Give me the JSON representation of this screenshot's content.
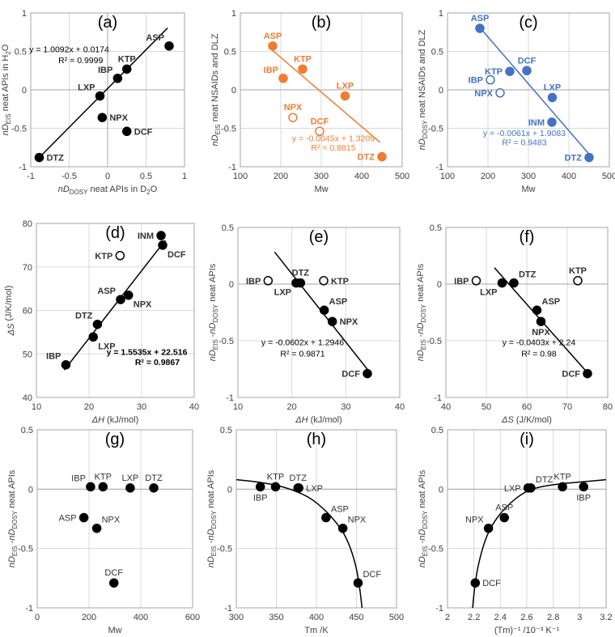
{
  "colors": {
    "black": "#000000",
    "orange": "#ED7D31",
    "blue": "#4472C4",
    "grid": "#d9d9d9",
    "axis": "#a6a6a6",
    "text": "#404040"
  },
  "chart_data": [
    {
      "type": "scatter",
      "panel_label": "(a)",
      "xlim": [
        -1,
        1
      ],
      "ylim": [
        -1,
        1
      ],
      "xticks": [
        "-1",
        "-0.5",
        "0",
        "0.5",
        "1"
      ],
      "yticks": [
        "-1",
        "-0.5",
        "0",
        "0.5",
        "1"
      ],
      "xlabel_italic": "nD",
      "xlabel_sub": "DOSY",
      "xlabel_rest": " neat APIs in D",
      "xlabel_sub2": "2",
      "xlabel_end": "O",
      "ylabel_italic": "nD",
      "ylabel_sub": "EIS",
      "ylabel_rest": " neat APIs in H",
      "ylabel_sub2": "2",
      "ylabel_end": "O",
      "color": "#000000",
      "points": [
        {
          "label": "ASP",
          "x": 0.8,
          "y": 0.57,
          "filled": true,
          "pos": "tl"
        },
        {
          "label": "KTP",
          "x": 0.25,
          "y": 0.27,
          "filled": true,
          "pos": "t"
        },
        {
          "label": "IBP",
          "x": 0.13,
          "y": 0.15,
          "filled": true,
          "pos": "tl"
        },
        {
          "label": "LXP",
          "x": -0.1,
          "y": -0.08,
          "filled": true,
          "pos": "tl"
        },
        {
          "label": "NPX",
          "x": -0.07,
          "y": -0.36,
          "filled": true,
          "pos": "r"
        },
        {
          "label": "DCF",
          "x": 0.25,
          "y": -0.54,
          "filled": true,
          "pos": "r"
        },
        {
          "label": "DTZ",
          "x": -0.89,
          "y": -0.88,
          "filled": true,
          "pos": "r"
        }
      ],
      "fit": {
        "kind": "linear",
        "slope": 1.0092,
        "intercept": 0.0174,
        "x_range": [
          -0.9,
          0.78
        ],
        "equation": "y = 1.0092x + 0.0174",
        "r2": "R² = 0.9999",
        "eq_at": [
          -0.5,
          0.49
        ],
        "r2_at": [
          -0.35,
          0.35
        ],
        "eq_weight": "normal"
      }
    },
    {
      "type": "scatter",
      "panel_label": "(b)",
      "xlim": [
        100,
        500
      ],
      "ylim": [
        -1,
        1
      ],
      "xticks": [
        "100",
        "200",
        "300",
        "400",
        "500"
      ],
      "yticks": [
        "-1",
        "-0.5",
        "0",
        "0.5",
        "1"
      ],
      "xlabel": "Mw",
      "ylabel_italic": "nD",
      "ylabel_sub": "EIS",
      "ylabel_rest": " neat NSAIDs and DLZ",
      "color": "#ED7D31",
      "points": [
        {
          "label": "ASP",
          "x": 180,
          "y": 0.57,
          "filled": true,
          "pos": "t"
        },
        {
          "label": "KTP",
          "x": 254,
          "y": 0.27,
          "filled": true,
          "pos": "t"
        },
        {
          "label": "IBP",
          "x": 206,
          "y": 0.15,
          "filled": true,
          "pos": "tl"
        },
        {
          "label": "LXP",
          "x": 359,
          "y": -0.08,
          "filled": true,
          "pos": "t"
        },
        {
          "label": "NPX",
          "x": 230,
          "y": -0.36,
          "filled": false,
          "pos": "t"
        },
        {
          "label": "DCF",
          "x": 296,
          "y": -0.54,
          "filled": false,
          "pos": "t"
        },
        {
          "label": "DTZ",
          "x": 450,
          "y": -0.87,
          "filled": true,
          "pos": "l"
        }
      ],
      "fit": {
        "kind": "linear",
        "slope": -0.0045,
        "intercept": 1.3209,
        "x_range": [
          178,
          445
        ],
        "equation": "y = -0.0045x + 1.3209",
        "r2": "R² = 0.8815",
        "eq_at": [
          330,
          -0.67
        ],
        "r2_at": [
          330,
          -0.79
        ],
        "eq_weight": "normal"
      }
    },
    {
      "type": "scatter",
      "panel_label": "(c)",
      "xlim": [
        100,
        500
      ],
      "ylim": [
        -1,
        1
      ],
      "xticks": [
        "100",
        "200",
        "300",
        "400",
        "500"
      ],
      "yticks": [
        "-1",
        "-0.5",
        "0",
        "0.5",
        "1"
      ],
      "xlabel": "Mw",
      "ylabel_italic": "nD",
      "ylabel_sub": "DOSY",
      "ylabel_rest": " neat NSAIDs and DLZ",
      "color": "#4472C4",
      "points": [
        {
          "label": "ASP",
          "x": 180,
          "y": 0.8,
          "filled": true,
          "pos": "t"
        },
        {
          "label": "DCF",
          "x": 296,
          "y": 0.25,
          "filled": true,
          "pos": "t"
        },
        {
          "label": "KTP",
          "x": 254,
          "y": 0.24,
          "filled": true,
          "pos": "l"
        },
        {
          "label": "IBP",
          "x": 206,
          "y": 0.13,
          "filled": false,
          "pos": "l"
        },
        {
          "label": "NPX",
          "x": 230,
          "y": -0.04,
          "filled": false,
          "pos": "l"
        },
        {
          "label": "LXP",
          "x": 359,
          "y": -0.1,
          "filled": true,
          "pos": "t"
        },
        {
          "label": "INM",
          "x": 358,
          "y": -0.42,
          "filled": true,
          "pos": "l"
        },
        {
          "label": "DTZ",
          "x": 450,
          "y": -0.88,
          "filled": true,
          "pos": "l"
        }
      ],
      "fit": {
        "kind": "linear",
        "slope": -0.0061,
        "intercept": 1.9083,
        "x_range": [
          180,
          452
        ],
        "equation": "y = -0.0061x + 1.9083",
        "r2": "R² = 0.9483",
        "eq_at": [
          290,
          -0.6
        ],
        "r2_at": [
          290,
          -0.72
        ],
        "eq_weight": "normal"
      }
    },
    {
      "type": "scatter",
      "panel_label": "(d)",
      "xlim": [
        10,
        40
      ],
      "ylim": [
        40,
        80
      ],
      "xticks": [
        "10",
        "20",
        "30",
        "40"
      ],
      "yticks": [
        "40",
        "50",
        "60",
        "70",
        "80"
      ],
      "xlabel_italic": "ΔH",
      "xlabel_rest": " (kJ/mol)",
      "ylabel_italic": "ΔS",
      "ylabel_rest": " (J/K/mol)",
      "color": "#000000",
      "points": [
        {
          "label": "INM",
          "x": 33.7,
          "y": 77.2,
          "filled": true,
          "pos": "l"
        },
        {
          "label": "DCF",
          "x": 34.0,
          "y": 75.0,
          "filled": true,
          "pos": "br"
        },
        {
          "label": "KTP",
          "x": 25.9,
          "y": 72.6,
          "filled": false,
          "pos": "l"
        },
        {
          "label": "ASP",
          "x": 26.0,
          "y": 62.5,
          "filled": true,
          "pos": "tl"
        },
        {
          "label": "NPX",
          "x": 27.5,
          "y": 63.5,
          "filled": true,
          "pos": "br"
        },
        {
          "label": "DTZ",
          "x": 21.6,
          "y": 56.8,
          "filled": true,
          "pos": "tl"
        },
        {
          "label": "LXP",
          "x": 20.8,
          "y": 53.9,
          "filled": true,
          "pos": "br"
        },
        {
          "label": "IBP",
          "x": 15.6,
          "y": 47.5,
          "filled": true,
          "pos": "tl"
        }
      ],
      "fit": {
        "kind": "linear",
        "slope": 1.5535,
        "intercept": 22.516,
        "x_range": [
          15.3,
          34.5
        ],
        "equation": "y = 1.5535x + 22.516",
        "r2": "R² = 0.9867",
        "eq_at": [
          31,
          49.8
        ],
        "r2_at": [
          33,
          47.4
        ],
        "eq_weight": "bold"
      }
    },
    {
      "type": "scatter",
      "panel_label": "(e)",
      "xlim": [
        10,
        40
      ],
      "ylim": [
        -1,
        0.5
      ],
      "xticks": [
        "10",
        "20",
        "30",
        "40"
      ],
      "yticks": [
        "-1",
        "-0.5",
        "0",
        "0.5"
      ],
      "xlabel_italic": "ΔH",
      "xlabel_rest": " (kJ/mol)",
      "ylabel_italic": "nD",
      "ylabel_sub": "EIS",
      "ylabel_rest2": " -",
      "ylabel_italic2": "nD",
      "ylabel_sub2": "DOSY",
      "ylabel_end": " neat APIs",
      "color": "#000000",
      "points": [
        {
          "label": "IBP",
          "x": 15.6,
          "y": 0.03,
          "filled": false,
          "pos": "l"
        },
        {
          "label": "LXP",
          "x": 20.8,
          "y": 0.01,
          "filled": true,
          "pos": "bl"
        },
        {
          "label": "DTZ",
          "x": 21.6,
          "y": 0.01,
          "filled": true,
          "pos": "t"
        },
        {
          "label": "KTP",
          "x": 25.9,
          "y": 0.03,
          "filled": false,
          "pos": "r"
        },
        {
          "label": "ASP",
          "x": 26.0,
          "y": -0.23,
          "filled": true,
          "pos": "tr"
        },
        {
          "label": "NPX",
          "x": 27.5,
          "y": -0.33,
          "filled": true,
          "pos": "r"
        },
        {
          "label": "DCF",
          "x": 34.0,
          "y": -0.79,
          "filled": true,
          "pos": "l"
        }
      ],
      "fit": {
        "kind": "linear",
        "slope": -0.0602,
        "intercept": 1.2946,
        "x_range": [
          16.8,
          34.6
        ],
        "equation": "y = -0.0602x + 1.2946",
        "r2": "R² = 0.9871",
        "eq_at": [
          22,
          -0.54
        ],
        "r2_at": [
          22,
          -0.64
        ],
        "eq_weight": "normal"
      }
    },
    {
      "type": "scatter",
      "panel_label": "(f)",
      "xlim": [
        40,
        80
      ],
      "ylim": [
        -1,
        0.5
      ],
      "xticks": [
        "40",
        "50",
        "60",
        "70",
        "80"
      ],
      "yticks": [
        "-1",
        "-0.5",
        "0",
        "0.5"
      ],
      "xlabel_italic": "ΔS",
      "xlabel_rest": " (J/K/mol)",
      "ylabel_italic": "nD",
      "ylabel_sub": "EIS",
      "ylabel_rest2": " -",
      "ylabel_italic2": "nD",
      "ylabel_sub2": "DOSY",
      "ylabel_end": " neat APIs",
      "color": "#000000",
      "points": [
        {
          "label": "IBP",
          "x": 47.5,
          "y": 0.03,
          "filled": false,
          "pos": "l"
        },
        {
          "label": "LXP",
          "x": 53.9,
          "y": 0.01,
          "filled": true,
          "pos": "bl"
        },
        {
          "label": "DTZ",
          "x": 56.8,
          "y": 0.01,
          "filled": true,
          "pos": "tr"
        },
        {
          "label": "KTP",
          "x": 72.6,
          "y": 0.03,
          "filled": false,
          "pos": "t"
        },
        {
          "label": "ASP",
          "x": 62.5,
          "y": -0.23,
          "filled": true,
          "pos": "tr"
        },
        {
          "label": "NPX",
          "x": 63.5,
          "y": -0.33,
          "filled": true,
          "pos": "b"
        },
        {
          "label": "DCF",
          "x": 75.0,
          "y": -0.79,
          "filled": true,
          "pos": "l"
        }
      ],
      "fit": {
        "kind": "linear",
        "slope": -0.0403,
        "intercept": 2.24,
        "x_range": [
          52,
          75.5
        ],
        "equation": "y = -0.0403x + 2.24",
        "r2": "R² = 0.98",
        "eq_at": [
          63,
          -0.54
        ],
        "r2_at": [
          63,
          -0.64
        ],
        "eq_weight": "normal"
      }
    },
    {
      "type": "scatter",
      "panel_label": "(g)",
      "xlim": [
        0,
        600
      ],
      "ylim": [
        -1,
        0.5
      ],
      "xticks": [
        "0",
        "200",
        "400",
        "600"
      ],
      "yticks": [
        "-1",
        "-0.5",
        "0",
        "0.5"
      ],
      "xlabel": "Mw",
      "ylabel_italic": "nD",
      "ylabel_sub": "EIS",
      "ylabel_rest2": " -",
      "ylabel_italic2": "nD",
      "ylabel_sub2": "DOSY",
      "ylabel_end": " neat APIs",
      "color": "#000000",
      "label_weight": "normal",
      "points": [
        {
          "label": "IBP",
          "x": 206,
          "y": 0.02,
          "filled": true,
          "pos": "tl"
        },
        {
          "label": "KTP",
          "x": 254,
          "y": 0.02,
          "filled": true,
          "pos": "t"
        },
        {
          "label": "LXP",
          "x": 359,
          "y": 0.01,
          "filled": true,
          "pos": "t"
        },
        {
          "label": "DTZ",
          "x": 450,
          "y": 0.01,
          "filled": true,
          "pos": "t"
        },
        {
          "label": "ASP",
          "x": 180,
          "y": -0.24,
          "filled": true,
          "pos": "l"
        },
        {
          "label": "NPX",
          "x": 230,
          "y": -0.33,
          "filled": true,
          "pos": "tr"
        },
        {
          "label": "DCF",
          "x": 296,
          "y": -0.79,
          "filled": true,
          "pos": "t"
        }
      ]
    },
    {
      "type": "scatter",
      "panel_label": "(h)",
      "xlim": [
        300,
        500
      ],
      "ylim": [
        -1,
        0.5
      ],
      "xticks": [
        "300",
        "350",
        "400",
        "450",
        "500"
      ],
      "yticks": [
        "-1",
        "-0.5",
        "0",
        "0.5"
      ],
      "xlabel": "Tm /K",
      "ylabel_italic": "nD",
      "ylabel_sub": "EIS",
      "ylabel_rest2": " -",
      "ylabel_italic2": "nD",
      "ylabel_sub2": "DOSY",
      "ylabel_end": " neat APIs",
      "color": "#000000",
      "label_weight": "normal",
      "points": [
        {
          "label": "IBP",
          "x": 330,
          "y": 0.02,
          "filled": true,
          "pos": "b"
        },
        {
          "label": "KTP",
          "x": 349,
          "y": 0.02,
          "filled": true,
          "pos": "t"
        },
        {
          "label": "DTZ",
          "x": 377,
          "y": 0.01,
          "filled": true,
          "pos": "t"
        },
        {
          "label": "LXP",
          "x": 378,
          "y": 0.01,
          "filled": true,
          "pos": "r"
        },
        {
          "label": "ASP",
          "x": 412,
          "y": -0.24,
          "filled": true,
          "pos": "tr"
        },
        {
          "label": "NPX",
          "x": 433,
          "y": -0.33,
          "filled": true,
          "pos": "tr"
        },
        {
          "label": "DCF",
          "x": 452,
          "y": -0.79,
          "filled": true,
          "pos": "tr"
        }
      ],
      "fit": {
        "kind": "curve",
        "points": [
          [
            300,
            0.08
          ],
          [
            330,
            0.06
          ],
          [
            360,
            0.02
          ],
          [
            390,
            -0.06
          ],
          [
            410,
            -0.17
          ],
          [
            425,
            -0.28
          ],
          [
            437,
            -0.4
          ],
          [
            447,
            -0.58
          ],
          [
            453,
            -0.77
          ],
          [
            457,
            -1.0
          ]
        ]
      }
    },
    {
      "type": "scatter",
      "panel_label": "(i)",
      "xlim": [
        2,
        3.2
      ],
      "ylim": [
        -1,
        0.5
      ],
      "xticks": [
        "2",
        "2.2",
        "2.4",
        "2.6",
        "2.8",
        "3",
        "3.2"
      ],
      "yticks": [
        "-1",
        "-0.5",
        "0",
        "0.5"
      ],
      "xlabel": "(Tm)⁻¹ /10⁻³ K⁻¹",
      "ylabel_italic": "nD",
      "ylabel_sub": "EIS",
      "ylabel_rest2": " -",
      "ylabel_italic2": "nD",
      "ylabel_sub2": "DOSY",
      "ylabel_end": " neat APIs",
      "color": "#000000",
      "label_weight": "normal",
      "points": [
        {
          "label": "IBP",
          "x": 3.03,
          "y": 0.02,
          "filled": true,
          "pos": "b"
        },
        {
          "label": "KTP",
          "x": 2.87,
          "y": 0.02,
          "filled": true,
          "pos": "t"
        },
        {
          "label": "DTZ",
          "x": 2.63,
          "y": 0.01,
          "filled": true,
          "pos": "tr"
        },
        {
          "label": "LXP",
          "x": 2.61,
          "y": 0.01,
          "filled": true,
          "pos": "l"
        },
        {
          "label": "ASP",
          "x": 2.43,
          "y": -0.24,
          "filled": true,
          "pos": "t"
        },
        {
          "label": "NPX",
          "x": 2.31,
          "y": -0.33,
          "filled": true,
          "pos": "tl"
        },
        {
          "label": "DCF",
          "x": 2.21,
          "y": -0.79,
          "filled": true,
          "pos": "r"
        }
      ],
      "fit": {
        "kind": "curve",
        "points": [
          [
            2.19,
            -1.0
          ],
          [
            2.21,
            -0.77
          ],
          [
            2.25,
            -0.55
          ],
          [
            2.31,
            -0.35
          ],
          [
            2.4,
            -0.2
          ],
          [
            2.5,
            -0.09
          ],
          [
            2.62,
            0.0
          ],
          [
            2.8,
            0.04
          ],
          [
            3.0,
            0.06
          ],
          [
            3.2,
            0.08
          ]
        ]
      }
    }
  ]
}
